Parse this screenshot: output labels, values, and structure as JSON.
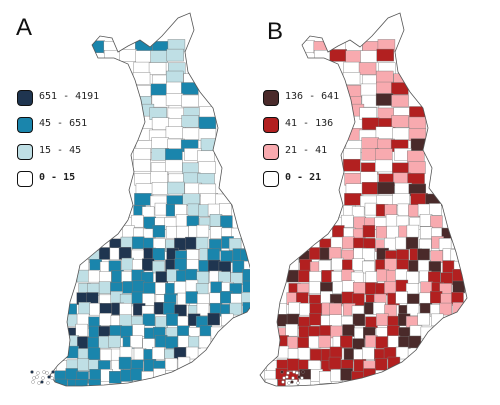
{
  "panels": [
    {
      "letter": "A",
      "legend": [
        {
          "label": "651 - 4191",
          "color": "#1f3550"
        },
        {
          "label": "45 - 651",
          "color": "#1a85ac"
        },
        {
          "label": "15 - 45",
          "color": "#bfdfe5"
        },
        {
          "label": "0 - 15",
          "color": "#ffffff"
        }
      ]
    },
    {
      "letter": "B",
      "legend": [
        {
          "label": "136 - 641",
          "color": "#4a2a2a"
        },
        {
          "label": "41 - 136",
          "color": "#b22020"
        },
        {
          "label": "21 - 41",
          "color": "#f8aaaf"
        },
        {
          "label": "0 - 21",
          "color": "#ffffff"
        }
      ]
    }
  ],
  "colors": {
    "border": "#777777",
    "outline": "#555555"
  }
}
